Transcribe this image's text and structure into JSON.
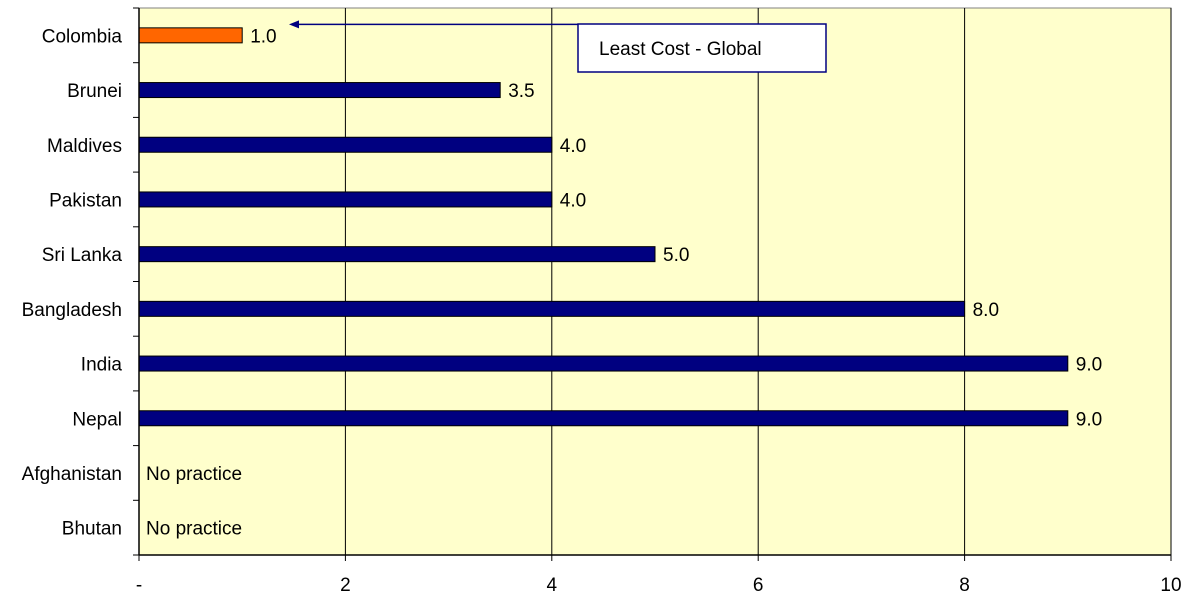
{
  "chart_data": {
    "type": "bar",
    "orientation": "horizontal",
    "title": "",
    "xlabel": "",
    "ylabel": "",
    "xlim": [
      0,
      10
    ],
    "x_ticks": [
      {
        "value": 0,
        "label": "-"
      },
      {
        "value": 2,
        "label": "2"
      },
      {
        "value": 4,
        "label": "4"
      },
      {
        "value": 6,
        "label": "6"
      },
      {
        "value": 8,
        "label": "8"
      },
      {
        "value": 10,
        "label": "10"
      }
    ],
    "grid": true,
    "bars": [
      {
        "category": "Colombia",
        "value": 1.0,
        "label": "1.0",
        "highlight": true
      },
      {
        "category": "Brunei",
        "value": 3.5,
        "label": "3.5",
        "highlight": false
      },
      {
        "category": "Maldives",
        "value": 4.0,
        "label": "4.0",
        "highlight": false
      },
      {
        "category": "Pakistan",
        "value": 4.0,
        "label": "4.0",
        "highlight": false
      },
      {
        "category": "Sri Lanka",
        "value": 5.0,
        "label": "5.0",
        "highlight": false
      },
      {
        "category": "Bangladesh",
        "value": 8.0,
        "label": "8.0",
        "highlight": false
      },
      {
        "category": "India",
        "value": 9.0,
        "label": "9.0",
        "highlight": false
      },
      {
        "category": "Nepal",
        "value": 9.0,
        "label": "9.0",
        "highlight": false
      },
      {
        "category": "Afghanistan",
        "value": null,
        "label": "No practice",
        "highlight": false
      },
      {
        "category": "Bhutan",
        "value": null,
        "label": "No practice",
        "highlight": false
      }
    ],
    "annotation": {
      "text": "Least Cost - Global",
      "points_to": "Colombia"
    },
    "colors": {
      "plot_background": "#ffffcc",
      "bar": "#000080",
      "highlight_bar": "#ff6600",
      "grid": "#000000",
      "annotation_border": "#000080"
    }
  }
}
